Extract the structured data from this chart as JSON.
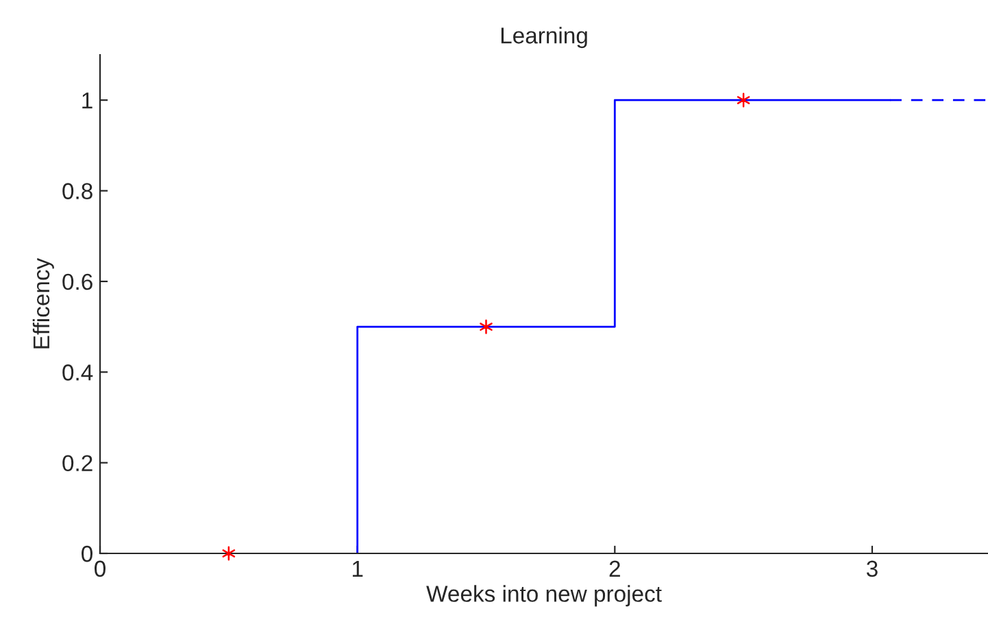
{
  "chart_data": {
    "type": "line",
    "title": "Learning",
    "xlabel": "Weeks into new project",
    "ylabel": "Efficency",
    "xlim": [
      0,
      3.45
    ],
    "ylim": [
      0,
      1.1
    ],
    "xticks": [
      0,
      1,
      2,
      3
    ],
    "yticks": [
      0,
      0.2,
      0.4,
      0.6,
      0.8,
      1
    ],
    "grid": false,
    "legend": false,
    "series": [
      {
        "color": "#0000ff",
        "line_style": "solid",
        "marker": "none",
        "x": [
          1,
          1,
          2,
          2,
          3.07
        ],
        "values": [
          0,
          0.5,
          0.5,
          1,
          1
        ]
      },
      {
        "color": "#0000ff",
        "line_style": "dashed",
        "marker": "none",
        "x": [
          3.07,
          3.45
        ],
        "values": [
          1,
          1
        ]
      },
      {
        "type": "scatter",
        "color": "#ff0000",
        "marker": "cross",
        "x": [
          0.5,
          1.5,
          2.5
        ],
        "values": [
          0,
          0.5,
          1
        ]
      }
    ]
  }
}
